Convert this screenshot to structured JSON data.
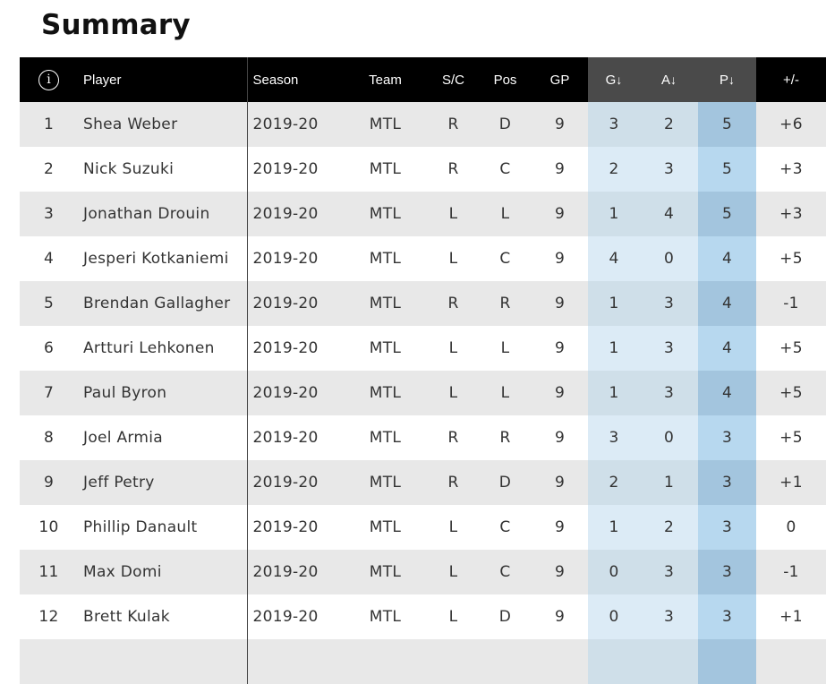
{
  "page": {
    "title": "Summary"
  },
  "table": {
    "headers": {
      "info_icon": "i",
      "player": "Player",
      "season": "Season",
      "team": "Team",
      "sc": "S/C",
      "pos": "Pos",
      "gp": "GP",
      "g": "G",
      "a": "A",
      "p": "P",
      "plusminus": "+/-",
      "sort_arrow": "↓"
    },
    "rows": [
      {
        "rank": "1",
        "player": "Shea Weber",
        "season": "2019-20",
        "team": "MTL",
        "sc": "R",
        "pos": "D",
        "gp": "9",
        "g": "3",
        "a": "2",
        "p": "5",
        "pm": "+6"
      },
      {
        "rank": "2",
        "player": "Nick Suzuki",
        "season": "2019-20",
        "team": "MTL",
        "sc": "R",
        "pos": "C",
        "gp": "9",
        "g": "2",
        "a": "3",
        "p": "5",
        "pm": "+3"
      },
      {
        "rank": "3",
        "player": "Jonathan Drouin",
        "season": "2019-20",
        "team": "MTL",
        "sc": "L",
        "pos": "L",
        "gp": "9",
        "g": "1",
        "a": "4",
        "p": "5",
        "pm": "+3"
      },
      {
        "rank": "4",
        "player": "Jesperi Kotkaniemi",
        "season": "2019-20",
        "team": "MTL",
        "sc": "L",
        "pos": "C",
        "gp": "9",
        "g": "4",
        "a": "0",
        "p": "4",
        "pm": "+5"
      },
      {
        "rank": "5",
        "player": "Brendan Gallagher",
        "season": "2019-20",
        "team": "MTL",
        "sc": "R",
        "pos": "R",
        "gp": "9",
        "g": "1",
        "a": "3",
        "p": "4",
        "pm": "-1"
      },
      {
        "rank": "6",
        "player": "Artturi Lehkonen",
        "season": "2019-20",
        "team": "MTL",
        "sc": "L",
        "pos": "L",
        "gp": "9",
        "g": "1",
        "a": "3",
        "p": "4",
        "pm": "+5"
      },
      {
        "rank": "7",
        "player": "Paul Byron",
        "season": "2019-20",
        "team": "MTL",
        "sc": "L",
        "pos": "L",
        "gp": "9",
        "g": "1",
        "a": "3",
        "p": "4",
        "pm": "+5"
      },
      {
        "rank": "8",
        "player": "Joel Armia",
        "season": "2019-20",
        "team": "MTL",
        "sc": "R",
        "pos": "R",
        "gp": "9",
        "g": "3",
        "a": "0",
        "p": "3",
        "pm": "+5"
      },
      {
        "rank": "9",
        "player": "Jeff Petry",
        "season": "2019-20",
        "team": "MTL",
        "sc": "R",
        "pos": "D",
        "gp": "9",
        "g": "2",
        "a": "1",
        "p": "3",
        "pm": "+1"
      },
      {
        "rank": "10",
        "player": "Phillip Danault",
        "season": "2019-20",
        "team": "MTL",
        "sc": "L",
        "pos": "C",
        "gp": "9",
        "g": "1",
        "a": "2",
        "p": "3",
        "pm": "0"
      },
      {
        "rank": "11",
        "player": "Max Domi",
        "season": "2019-20",
        "team": "MTL",
        "sc": "L",
        "pos": "C",
        "gp": "9",
        "g": "0",
        "a": "3",
        "p": "3",
        "pm": "-1"
      },
      {
        "rank": "12",
        "player": "Brett Kulak",
        "season": "2019-20",
        "team": "MTL",
        "sc": "L",
        "pos": "D",
        "gp": "9",
        "g": "0",
        "a": "3",
        "p": "3",
        "pm": "+1"
      },
      {
        "rank": "",
        "player": "",
        "season": "",
        "team": "",
        "sc": "",
        "pos": "",
        "gp": "",
        "g": "",
        "a": "",
        "p": "",
        "pm": ""
      }
    ]
  },
  "colors": {
    "header_bg": "#000000",
    "sorted_header_bg": "#4a4a4a",
    "positive": "#3d9a3d",
    "negative": "#d12a2a"
  }
}
